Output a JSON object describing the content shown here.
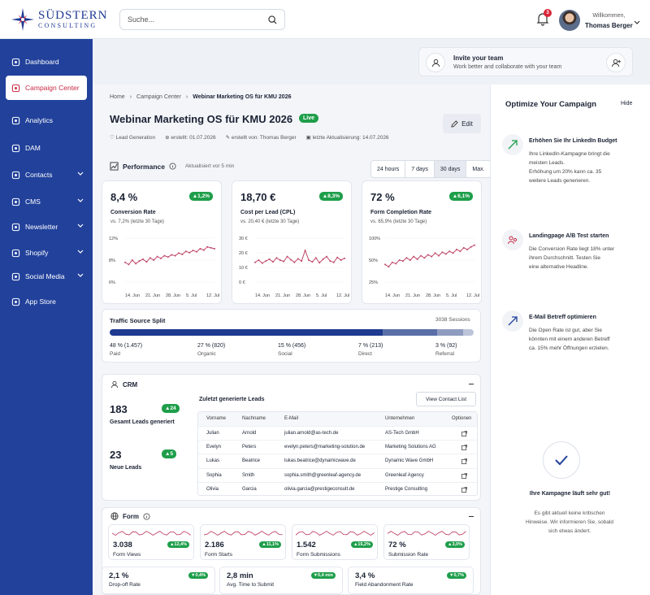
{
  "brand": {
    "line1": "SÜDSTERN",
    "line2": "CONSULTING"
  },
  "search": {
    "placeholder": "Suche..."
  },
  "header": {
    "notifications": "3",
    "greeting": "Willkommen,",
    "user": "Thomas Berger"
  },
  "nav": [
    {
      "label": "Dashboard",
      "icon": "dashboard-icon"
    },
    {
      "label": "Campaign Center",
      "icon": "campaign-icon"
    },
    {
      "label": "Analytics",
      "icon": "analytics-icon"
    },
    {
      "label": "DAM",
      "icon": "image-icon"
    },
    {
      "label": "Contacts",
      "icon": "contacts-icon"
    },
    {
      "label": "CMS",
      "icon": "cms-icon"
    },
    {
      "label": "Newsletter",
      "icon": "mail-icon"
    },
    {
      "label": "Shopify",
      "icon": "shop-icon"
    },
    {
      "label": "Social Media",
      "icon": "social-icon"
    },
    {
      "label": "App Store",
      "icon": "store-icon"
    }
  ],
  "invite": {
    "title": "Invite your team",
    "subtitle": "Work better and collaborate with your team"
  },
  "breadcrumb": [
    "Home",
    "Campaign Center",
    "Webinar Marketing OS für KMU 2026"
  ],
  "page": {
    "title": "Webinar Marketing OS für KMU 2026",
    "status": "Live",
    "edit": "Edit",
    "tag": "Lead Generation",
    "created": "erstellt: 01.07.2026",
    "created_by": "erstellt von: Thomas Berger",
    "updated": "letzte Aktualisierung: 14.07.2026"
  },
  "performance": {
    "title": "Performance",
    "updated": "Aktualisiert vor 5 min",
    "ranges": [
      "24 hours",
      "7 days",
      "30 days",
      "Max."
    ],
    "selected_range": "30 days"
  },
  "kpis": [
    {
      "value": "8,4 %",
      "badge": "1,2%",
      "label": "Conversion Rate",
      "sub": "vs. 7,2% (letzte 30 Tage)",
      "yticks": [
        "12%",
        "8%",
        "6%"
      ],
      "xticks": [
        "14. Jun",
        "21. Jun",
        "28. Jun",
        "5. Jul",
        "12. Jul"
      ]
    },
    {
      "value": "18,70 €",
      "badge": "8,3%",
      "label": "Cost per Lead (CPL)",
      "sub": "vs. 20,40 € (letzte 30 Tage)",
      "yticks": [
        "30 €",
        "20 €",
        "10 €",
        "0 €"
      ],
      "xticks": [
        "14. Jun",
        "21. Jun",
        "28. Jun",
        "5. Jul",
        "12. Jul"
      ]
    },
    {
      "value": "72 %",
      "badge": "6,1%",
      "label": "Form Completion Rate",
      "sub": "vs. 65,9% (letzte 30 Tage)",
      "yticks": [
        "100%",
        "50%",
        "25%"
      ],
      "xticks": [
        "14. Jun",
        "21. Jun",
        "28. Jun",
        "5. Jul",
        "12. Jul"
      ]
    }
  ],
  "traffic": {
    "title": "Traffic Source Split",
    "sessions": "3038 Sessions",
    "sources": [
      {
        "value": "48 % (1.457)",
        "label": "Paid",
        "share": 48,
        "color": "#1f3a8f"
      },
      {
        "value": "27 % (820)",
        "label": "Organic",
        "share": 27,
        "color": "#1f3a8f"
      },
      {
        "value": "15 % (456)",
        "label": "Social",
        "share": 15,
        "color": "#5a6fa8"
      },
      {
        "value": "7 % (213)",
        "label": "Direct",
        "share": 7,
        "color": "#8f9cc0"
      },
      {
        "value": "3 % (92)",
        "label": "Referral",
        "share": 3,
        "color": "#bcc4da"
      }
    ]
  },
  "crm": {
    "title": "CRM",
    "total": "183",
    "total_badge": "24",
    "total_label": "Gesamt Leads generiert",
    "new": "23",
    "new_badge": "5",
    "new_label": "Neue Leads",
    "recent_title": "Zuletzt generierte Leads",
    "view_btn": "View Contact List",
    "columns": [
      "Vorname",
      "Nachname",
      "E-Mail",
      "Unternehmen",
      "Optionen"
    ],
    "rows": [
      [
        "Julian",
        "Arnold",
        "julian.arnold@as-tech.de",
        "AS-Tech GmbH"
      ],
      [
        "Evelyn",
        "Peters",
        "evelyn.peters@marketing-solution.de",
        "Marketing Solutions AG"
      ],
      [
        "Lukas",
        "Beatrice",
        "lukas.beatrice@dynamicwave.de",
        "Dynamic Wave GmbH"
      ],
      [
        "Sophia",
        "Smith",
        "sophia.smith@greenleaf-agency.de",
        "Greenleaf Agency"
      ],
      [
        "Olivia",
        "Garcia",
        "olivia.garcia@prestigeconsult.de",
        "Prestige Consulting"
      ]
    ]
  },
  "form": {
    "title": "Form",
    "top": [
      {
        "value": "3.038",
        "badge": "12,4%",
        "label": "Form Views"
      },
      {
        "value": "2.186",
        "badge": "11,1%",
        "label": "Form Starts"
      },
      {
        "value": "1.542",
        "badge": "15,2%",
        "label": "Form Submissions"
      },
      {
        "value": "72 %",
        "badge": "3,0%",
        "label": "Submission Rate"
      }
    ],
    "bottom": [
      {
        "value": "2,1 %",
        "badge": "0,4%",
        "label": "Drop-off Rate"
      },
      {
        "value": "2,8 min",
        "badge": "0,4 min",
        "label": "Avg. Time to Submit"
      },
      {
        "value": "3,4 %",
        "badge": "0,7%",
        "label": "Field Abandonment Rate"
      }
    ]
  },
  "optimize": {
    "title": "Optimize Your Campaign",
    "hide": "Hide",
    "items": [
      {
        "title": "Erhöhen Sie Ihr LinkedIn Budget",
        "lines": [
          "Ihre LinkedIn-Kampagne bringt die",
          "meisten Leads.",
          "Erhöhung um 20% kann ca. 35",
          "weitere Leads generieren."
        ],
        "icon": "trend-up-icon"
      },
      {
        "title": "Landingpage A/B Test starten",
        "lines": [
          "Die Conversion Rate liegt 18% unter",
          "ihrem Durchschnitt. Testen Sie",
          "eine alternative Headline."
        ],
        "icon": "users-icon"
      },
      {
        "title": "E-Mail Betreff optimieren",
        "lines": [
          "Die Open Rate ist gut, aber Sie",
          "könnten mit einem anderen Betreff",
          "ca. 15% mehr Öffnungen erzielen."
        ],
        "icon": "arrow-up-right-icon"
      }
    ],
    "ok_title": "Ihre Kampagne läuft sehr gut!",
    "ok_lines": [
      "Es gibt aktuell keine kritischen",
      "Hinweise. Wir informieren Sie, sobald",
      "sich etwas ändert."
    ]
  },
  "colors": {
    "brand": "#21419b",
    "accent": "#c82a44",
    "success": "#1e9e4a",
    "chart": "#c0486a"
  }
}
